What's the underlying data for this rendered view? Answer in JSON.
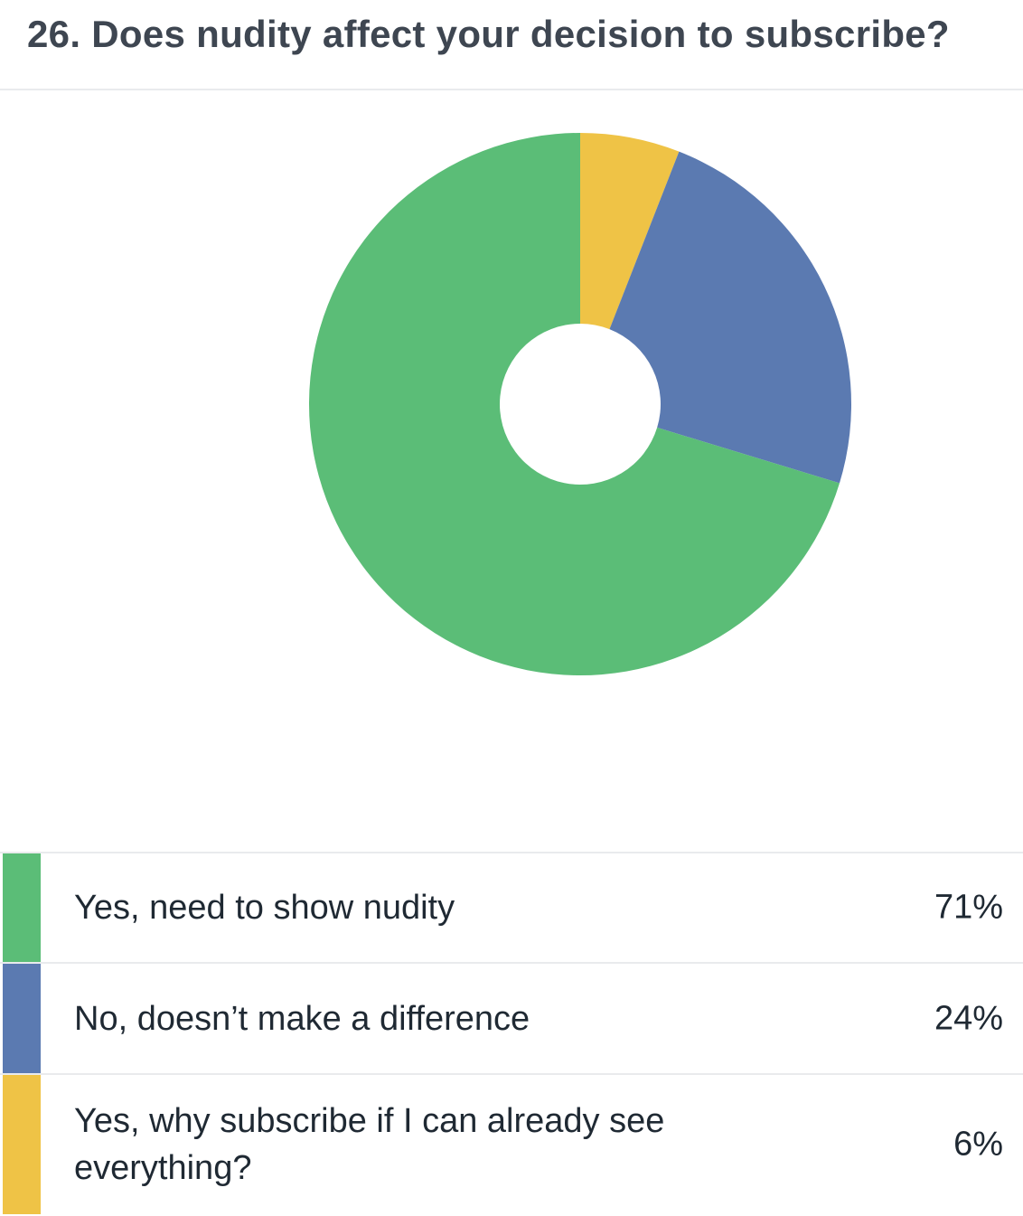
{
  "title": "26. Does nudity affect your decision to subscribe?",
  "chart_data": {
    "type": "pie",
    "title": "26. Does nudity affect your decision to subscribe?",
    "slices": [
      {
        "label": "Yes, need to show nudity",
        "value": 71,
        "display": "71%",
        "color": "#5bbd77"
      },
      {
        "label": "No, doesn’t make a difference",
        "value": 24,
        "display": "24%",
        "color": "#5b7ab1"
      },
      {
        "label": "Yes, why subscribe if I can already see everything?",
        "value": 6,
        "display": "6%",
        "color": "#efc346"
      }
    ],
    "legend_position": "bottom"
  }
}
